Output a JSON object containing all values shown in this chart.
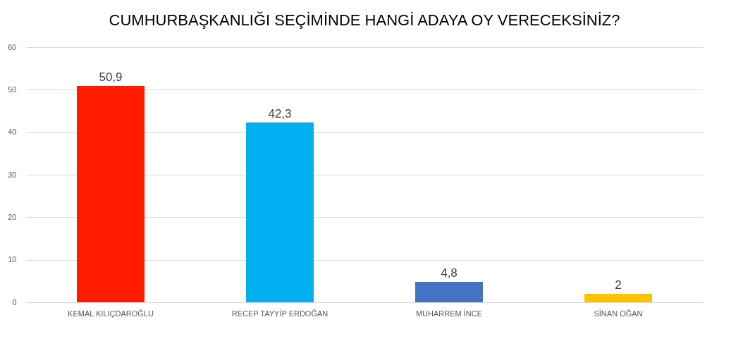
{
  "chart_data": {
    "type": "bar",
    "title": "CUMHURBAŞKANLIĞI SEÇİMİNDE HANGİ ADAYA OY VERECEKSİNİZ?",
    "categories": [
      "KEMAL KILIÇDAROĞLU",
      "RECEP TAYYİP ERDOĞAN",
      "MUHARREM İNCE",
      "SİNAN OĞAN"
    ],
    "values": [
      50.9,
      42.3,
      4.8,
      2
    ],
    "value_labels": [
      "50,9",
      "42,3",
      "4,8",
      "2"
    ],
    "colors": [
      "#ff1a00",
      "#00b0f0",
      "#4472c4",
      "#ffc000"
    ],
    "ylim": [
      0,
      60
    ],
    "yticks": [
      0,
      10,
      20,
      30,
      40,
      50,
      60
    ],
    "grid": "y"
  }
}
